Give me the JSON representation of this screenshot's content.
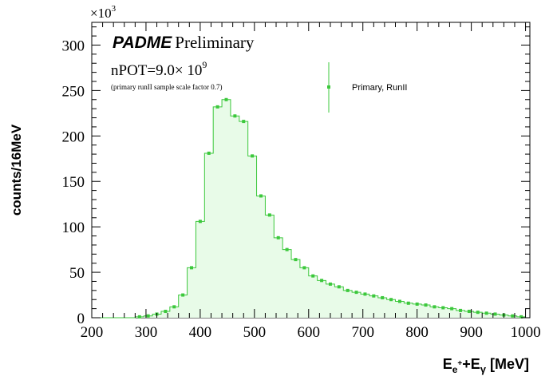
{
  "chart_data": {
    "type": "histogram",
    "title": "",
    "xlabel_main": "E",
    "xlabel_sub1": "e",
    "xlabel_sup1": "+",
    "xlabel_plus": "+E",
    "xlabel_sub2": "γ",
    "xlabel_unit": " [MeV]",
    "ylabel": "counts/16MeV",
    "y_multiplier_base": "×10",
    "y_multiplier_exp": "3",
    "xlim": [
      200,
      1008
    ],
    "ylim": [
      0,
      325
    ],
    "xticks": [
      200,
      300,
      400,
      500,
      600,
      700,
      800,
      900,
      1000
    ],
    "yticks": [
      0,
      50,
      100,
      150,
      200,
      250,
      300
    ],
    "bin_width": 16,
    "series": [
      {
        "name": "Primary, RunII",
        "color": "#3cc83c",
        "fill": "#e8fbe8",
        "bin_starts": [
          200,
          216,
          232,
          248,
          264,
          280,
          296,
          312,
          328,
          344,
          360,
          376,
          392,
          408,
          424,
          440,
          456,
          472,
          488,
          504,
          520,
          536,
          552,
          568,
          584,
          600,
          616,
          632,
          648,
          664,
          680,
          696,
          712,
          728,
          744,
          760,
          776,
          792,
          808,
          824,
          840,
          856,
          872,
          888,
          904,
          920,
          936,
          952,
          968,
          984
        ],
        "values": [
          0,
          0,
          0,
          0,
          0,
          1,
          2,
          4,
          7,
          12,
          25,
          55,
          106,
          181,
          232,
          240,
          222,
          216,
          178,
          134,
          113,
          88,
          75,
          64,
          55,
          46,
          41,
          37,
          34,
          30,
          28,
          26,
          24,
          22,
          20,
          18,
          16,
          15,
          14,
          12,
          11,
          10,
          8,
          7,
          6,
          5,
          4,
          3,
          2,
          1
        ]
      }
    ]
  },
  "annotations": {
    "experiment_label": "PADME",
    "preliminary_label": "Preliminary",
    "npot_prefix": "nPOT=9.0×",
    "npot_base": " 10",
    "npot_exp": "9",
    "scale_note": "(primary runII sample scale factor 0.7)",
    "legend_label": "Primary, RunII"
  }
}
